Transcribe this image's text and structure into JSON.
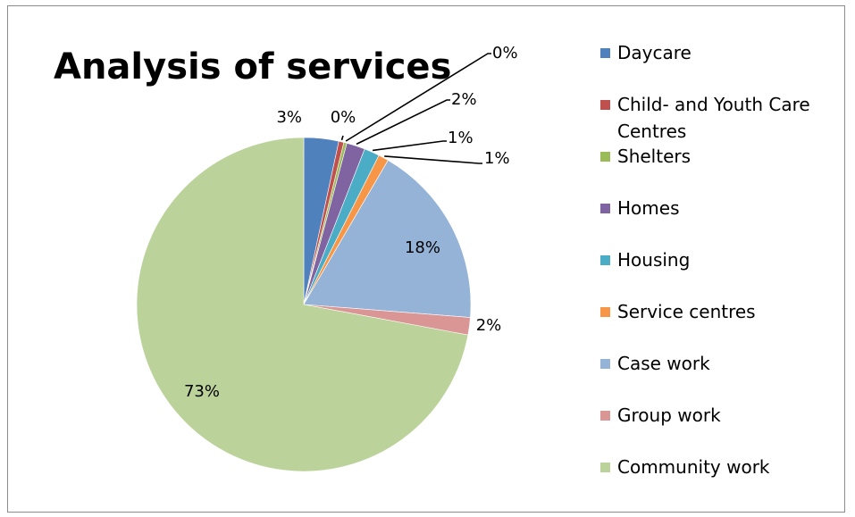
{
  "chart_data": {
    "type": "pie",
    "title": "Analysis of services",
    "categories": [
      "Daycare",
      "Child- and Youth Care Centres",
      "Shelters",
      "Homes",
      "Housing",
      "Service centres",
      "Case work",
      "Group work",
      "Community work"
    ],
    "legend_lines": [
      [
        "Daycare"
      ],
      [
        "Child- and Youth Care",
        "Centres"
      ],
      [
        "Shelters"
      ],
      [
        "Homes"
      ],
      [
        "Housing"
      ],
      [
        "Service centres"
      ],
      [
        "Case work"
      ],
      [
        "Group work"
      ],
      [
        "Community work"
      ]
    ],
    "values": [
      3.4,
      0.5,
      0.3,
      1.8,
      1.5,
      1.0,
      18.0,
      1.7,
      72.8
    ],
    "data_labels": [
      "3%",
      "0%",
      "0%",
      "2%",
      "1%",
      "1%",
      "18%",
      "2%",
      "73%"
    ],
    "colors": [
      "#4F81BD",
      "#C0504D",
      "#9BBB59",
      "#8064A2",
      "#4BACC6",
      "#F79646",
      "#95B3D7",
      "#D99694",
      "#BBD39A"
    ],
    "legend_position": "right",
    "label_style": "percent"
  }
}
